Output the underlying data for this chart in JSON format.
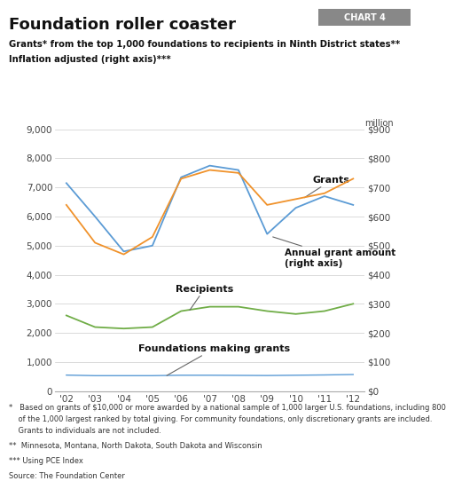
{
  "title": "Foundation roller coaster",
  "chart_label": "CHART 4",
  "subtitle_line1": "Grants* from the top 1,000 foundations to recipients in Ninth District states**",
  "subtitle_line2": "Inflation adjusted (right axis)***",
  "years": [
    2002,
    2003,
    2004,
    2005,
    2006,
    2007,
    2008,
    2009,
    2010,
    2011,
    2012
  ],
  "grants_count": [
    7150,
    6000,
    4800,
    5000,
    7350,
    7750,
    7600,
    5400,
    6300,
    6700,
    6400
  ],
  "annual_grant_amount": [
    640,
    510,
    470,
    530,
    730,
    760,
    750,
    640,
    660,
    680,
    730
  ],
  "recipients": [
    2600,
    2200,
    2150,
    2200,
    2750,
    2900,
    2900,
    2750,
    2650,
    2750,
    3000
  ],
  "foundations": [
    550,
    530,
    530,
    530,
    545,
    545,
    540,
    535,
    545,
    555,
    570
  ],
  "grants_color": "#5b9bd5",
  "annual_grant_color": "#f0922b",
  "recipients_color": "#70ad47",
  "foundations_color": "#5b9bd5",
  "left_ylim": [
    0,
    9000
  ],
  "right_ylim": [
    0,
    900
  ],
  "left_yticks": [
    0,
    1000,
    2000,
    3000,
    4000,
    5000,
    6000,
    7000,
    8000,
    9000
  ],
  "right_yticks": [
    0,
    100,
    200,
    300,
    400,
    500,
    600,
    700,
    800,
    900
  ],
  "footnote1": "*   Based on grants of $10,000 or more awarded by a national sample of 1,000 larger U.S. foundations, including 800",
  "footnote1b": "    of the 1,000 largest ranked by total giving. For community foundations, only discretionary grants are included.",
  "footnote1c": "    Grants to individuals are not included.",
  "footnote2": "**  Minnesota, Montana, North Dakota, South Dakota and Wisconsin",
  "footnote3": "*** Using PCE Index",
  "source": "Source: The Foundation Center",
  "background_color": "#ffffff",
  "grid_color": "#cccccc"
}
